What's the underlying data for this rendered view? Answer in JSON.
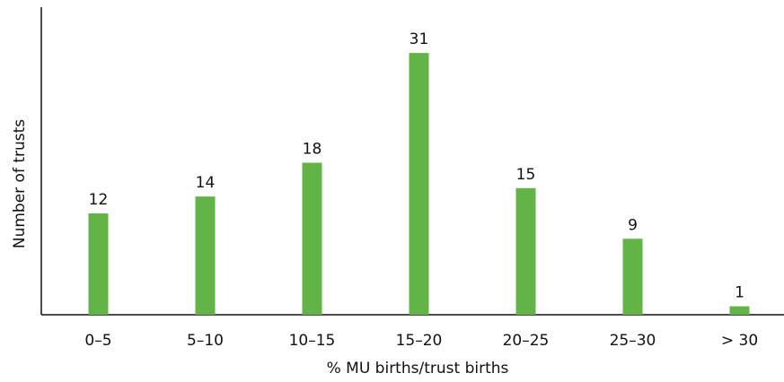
{
  "chart_data": {
    "type": "bar",
    "xlabel": "% MU births/trust births",
    "ylabel": "Number of trusts",
    "categories": [
      "0–5",
      "5–10",
      "10–15",
      "15–20",
      "20–25",
      "25–30",
      "> 30"
    ],
    "values": [
      12,
      14,
      18,
      31,
      15,
      9,
      1
    ],
    "color": "#62b446",
    "ylim": [
      0,
      36
    ],
    "grid": false
  }
}
